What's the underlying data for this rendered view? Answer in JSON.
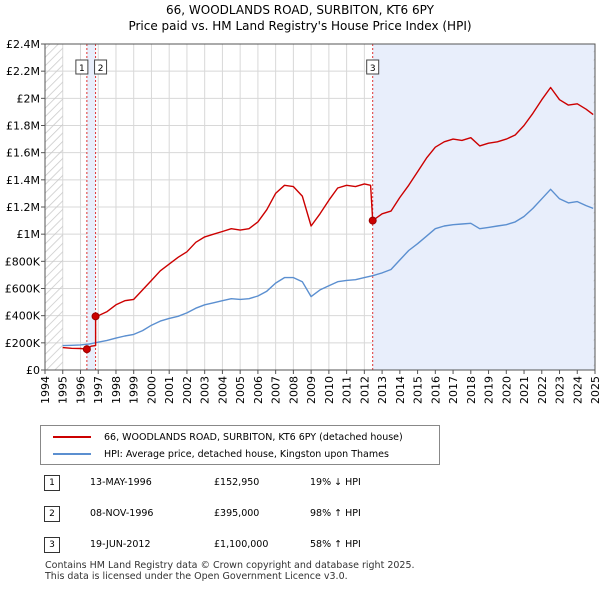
{
  "title": "66, WOODLANDS ROAD, SURBITON, KT6 6PY",
  "subtitle": "Price paid vs. HM Land Registry's House Price Index (HPI)",
  "chart_data": {
    "type": "line",
    "y_ticks": [
      0,
      200000,
      400000,
      600000,
      800000,
      1000000,
      1200000,
      1400000,
      1600000,
      1800000,
      2000000,
      2200000,
      2400000
    ],
    "y_tick_labels": [
      "£0",
      "£200K",
      "£400K",
      "£600K",
      "£800K",
      "£1M",
      "£1.2M",
      "£1.4M",
      "£1.6M",
      "£1.8M",
      "£2M",
      "£2.2M",
      "£2.4M"
    ],
    "ylim": [
      0,
      2400000
    ],
    "xlim": [
      1994,
      2025
    ],
    "x_ticks": [
      "1994",
      "1995",
      "1996",
      "1997",
      "1998",
      "1999",
      "2000",
      "2001",
      "2002",
      "2003",
      "2004",
      "2005",
      "2006",
      "2007",
      "2008",
      "2009",
      "2010",
      "2011",
      "2012",
      "2013",
      "2014",
      "2015",
      "2016",
      "2017",
      "2018",
      "2019",
      "2020",
      "2021",
      "2022",
      "2023",
      "2024",
      "2025"
    ],
    "series": [
      {
        "name": "66, WOODLANDS ROAD, SURBITON, KT6 6PY (detached house)",
        "color": "#cc0000",
        "points": [
          [
            1995.0,
            165000
          ],
          [
            1995.5,
            160000
          ],
          [
            1996.0,
            158000
          ],
          [
            1996.36,
            152950
          ],
          [
            1996.6,
            175000
          ],
          [
            1996.85,
            180000
          ],
          [
            1996.85,
            395000
          ],
          [
            1997.0,
            400000
          ],
          [
            1997.5,
            430000
          ],
          [
            1998.0,
            480000
          ],
          [
            1998.5,
            510000
          ],
          [
            1999.0,
            520000
          ],
          [
            1999.5,
            590000
          ],
          [
            2000.0,
            660000
          ],
          [
            2000.5,
            730000
          ],
          [
            2001.0,
            780000
          ],
          [
            2001.5,
            830000
          ],
          [
            2002.0,
            870000
          ],
          [
            2002.5,
            940000
          ],
          [
            2003.0,
            980000
          ],
          [
            2003.5,
            1000000
          ],
          [
            2004.0,
            1020000
          ],
          [
            2004.5,
            1040000
          ],
          [
            2005.0,
            1030000
          ],
          [
            2005.5,
            1040000
          ],
          [
            2006.0,
            1090000
          ],
          [
            2006.5,
            1180000
          ],
          [
            2007.0,
            1300000
          ],
          [
            2007.5,
            1360000
          ],
          [
            2008.0,
            1350000
          ],
          [
            2008.5,
            1280000
          ],
          [
            2009.0,
            1060000
          ],
          [
            2009.5,
            1150000
          ],
          [
            2010.0,
            1250000
          ],
          [
            2010.5,
            1340000
          ],
          [
            2011.0,
            1360000
          ],
          [
            2011.5,
            1350000
          ],
          [
            2012.0,
            1370000
          ],
          [
            2012.35,
            1360000
          ],
          [
            2012.47,
            1100000
          ],
          [
            2013.0,
            1150000
          ],
          [
            2013.5,
            1170000
          ],
          [
            2014.0,
            1270000
          ],
          [
            2014.5,
            1360000
          ],
          [
            2015.0,
            1460000
          ],
          [
            2015.5,
            1560000
          ],
          [
            2016.0,
            1640000
          ],
          [
            2016.5,
            1680000
          ],
          [
            2017.0,
            1700000
          ],
          [
            2017.5,
            1690000
          ],
          [
            2018.0,
            1710000
          ],
          [
            2018.5,
            1650000
          ],
          [
            2019.0,
            1670000
          ],
          [
            2019.5,
            1680000
          ],
          [
            2020.0,
            1700000
          ],
          [
            2020.5,
            1730000
          ],
          [
            2021.0,
            1800000
          ],
          [
            2021.5,
            1890000
          ],
          [
            2022.0,
            1990000
          ],
          [
            2022.5,
            2080000
          ],
          [
            2023.0,
            1990000
          ],
          [
            2023.5,
            1950000
          ],
          [
            2024.0,
            1960000
          ],
          [
            2024.5,
            1920000
          ],
          [
            2024.9,
            1880000
          ]
        ]
      },
      {
        "name": "HPI: Average price, detached house, Kingston upon Thames",
        "color": "#5b8fd0",
        "points": [
          [
            1995.0,
            180000
          ],
          [
            1995.5,
            182000
          ],
          [
            1996.0,
            185000
          ],
          [
            1996.5,
            192000
          ],
          [
            1997.0,
            205000
          ],
          [
            1997.5,
            218000
          ],
          [
            1998.0,
            235000
          ],
          [
            1998.5,
            250000
          ],
          [
            1999.0,
            262000
          ],
          [
            1999.5,
            290000
          ],
          [
            2000.0,
            330000
          ],
          [
            2000.5,
            360000
          ],
          [
            2001.0,
            380000
          ],
          [
            2001.5,
            395000
          ],
          [
            2002.0,
            420000
          ],
          [
            2002.5,
            455000
          ],
          [
            2003.0,
            480000
          ],
          [
            2003.5,
            495000
          ],
          [
            2004.0,
            510000
          ],
          [
            2004.5,
            525000
          ],
          [
            2005.0,
            520000
          ],
          [
            2005.5,
            525000
          ],
          [
            2006.0,
            545000
          ],
          [
            2006.5,
            580000
          ],
          [
            2007.0,
            640000
          ],
          [
            2007.5,
            680000
          ],
          [
            2008.0,
            680000
          ],
          [
            2008.5,
            650000
          ],
          [
            2009.0,
            540000
          ],
          [
            2009.5,
            590000
          ],
          [
            2010.0,
            620000
          ],
          [
            2010.5,
            650000
          ],
          [
            2011.0,
            660000
          ],
          [
            2011.5,
            665000
          ],
          [
            2012.0,
            680000
          ],
          [
            2012.5,
            695000
          ],
          [
            2013.0,
            715000
          ],
          [
            2013.5,
            740000
          ],
          [
            2014.0,
            810000
          ],
          [
            2014.5,
            880000
          ],
          [
            2015.0,
            930000
          ],
          [
            2015.5,
            985000
          ],
          [
            2016.0,
            1040000
          ],
          [
            2016.5,
            1060000
          ],
          [
            2017.0,
            1070000
          ],
          [
            2017.5,
            1075000
          ],
          [
            2018.0,
            1080000
          ],
          [
            2018.5,
            1040000
          ],
          [
            2019.0,
            1050000
          ],
          [
            2019.5,
            1060000
          ],
          [
            2020.0,
            1070000
          ],
          [
            2020.5,
            1090000
          ],
          [
            2021.0,
            1130000
          ],
          [
            2021.5,
            1190000
          ],
          [
            2022.0,
            1260000
          ],
          [
            2022.5,
            1330000
          ],
          [
            2023.0,
            1260000
          ],
          [
            2023.5,
            1230000
          ],
          [
            2024.0,
            1240000
          ],
          [
            2024.5,
            1210000
          ],
          [
            2024.9,
            1190000
          ]
        ]
      }
    ],
    "sales": [
      {
        "label": "1",
        "x": 1996.36,
        "y": 152950
      },
      {
        "label": "2",
        "x": 1996.85,
        "y": 395000
      },
      {
        "label": "3",
        "x": 2012.47,
        "y": 1100000
      }
    ],
    "shaded_regions": [
      [
        1996.36,
        1996.85
      ],
      [
        2012.47,
        2025
      ]
    ],
    "hatched_regions": [
      [
        1994,
        1995
      ],
      [
        2024.92,
        2025
      ]
    ]
  },
  "legend": {
    "items": [
      {
        "label": "66, WOODLANDS ROAD, SURBITON, KT6 6PY (detached house)",
        "color": "#cc0000"
      },
      {
        "label": "HPI: Average price, detached house, Kingston upon Thames",
        "color": "#5b8fd0"
      }
    ]
  },
  "transactions": [
    {
      "num": "1",
      "date": "13-MAY-1996",
      "price": "£152,950",
      "hpi": "19% ↓ HPI"
    },
    {
      "num": "2",
      "date": "08-NOV-1996",
      "price": "£395,000",
      "hpi": "98% ↑ HPI"
    },
    {
      "num": "3",
      "date": "19-JUN-2012",
      "price": "£1,100,000",
      "hpi": "58% ↑ HPI"
    }
  ],
  "footer": {
    "line1": "Contains HM Land Registry data © Crown copyright and database right 2025.",
    "line2": "This data is licensed under the Open Government Licence v3.0."
  }
}
